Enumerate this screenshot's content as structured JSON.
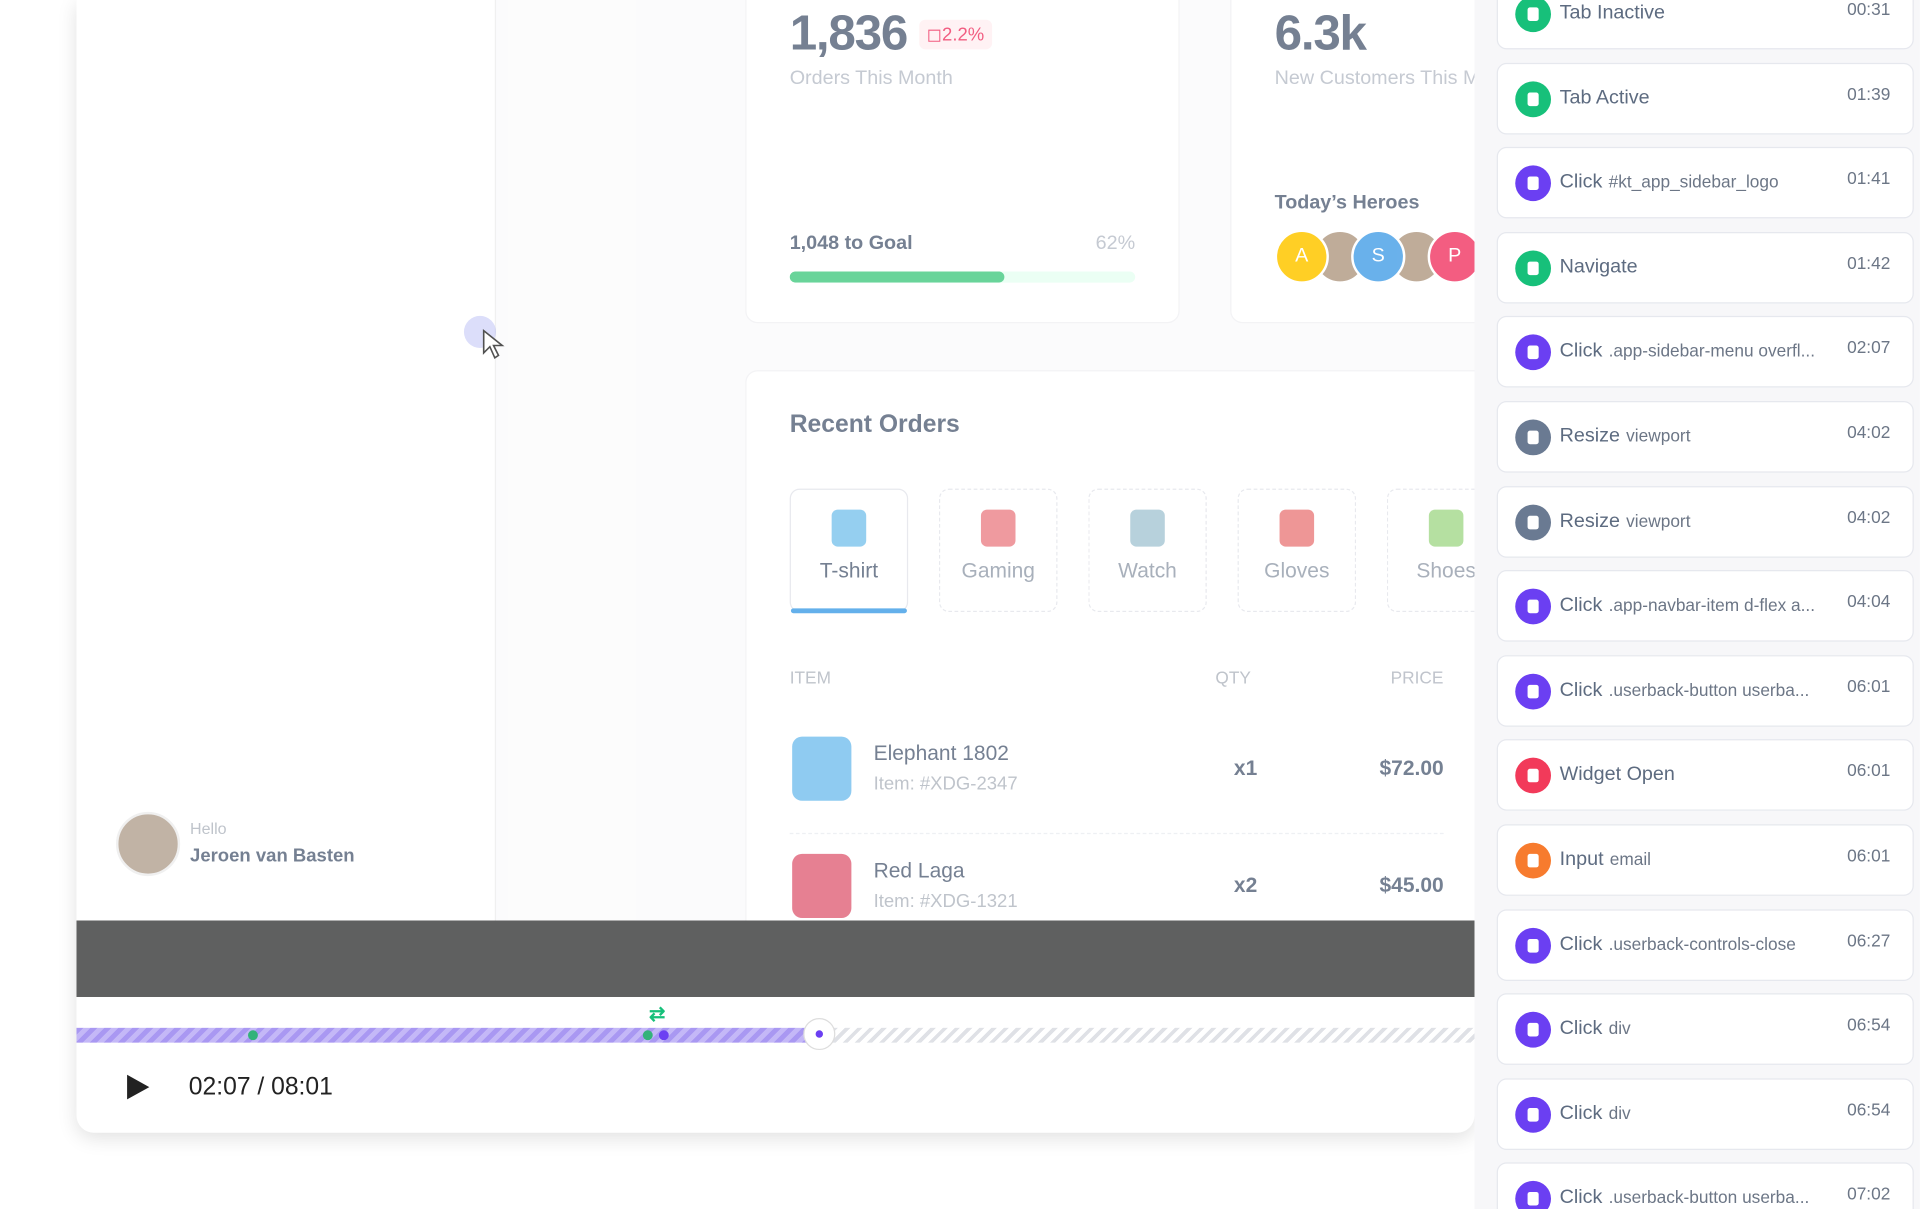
{
  "stats": {
    "orders": {
      "value": "1,836",
      "change": "2.2%",
      "label": "Orders This Month",
      "goal": "1,048 to Goal",
      "goal_percent": {
        "value": 62,
        "label": "62%"
      }
    },
    "customers": {
      "value": "6.3k",
      "label": "New Customers This Month",
      "heroes_title": "Today’s Heroes",
      "heroes": [
        "A",
        "S",
        "P"
      ]
    }
  },
  "recent_orders": {
    "title": "Recent Orders",
    "tabs": [
      "T-shirt",
      "Gaming",
      "Watch",
      "Gloves",
      "Shoes"
    ],
    "columns": [
      "ITEM",
      "QTY",
      "PRICE"
    ],
    "rows": [
      {
        "name": "Elephant 1802",
        "item": "Item: #XDG-2347",
        "qty": "x1",
        "price": "$72.00"
      },
      {
        "name": "Red Laga",
        "item": "Item: #XDG-1321",
        "qty": "x2",
        "price": "$45.00"
      }
    ]
  },
  "user": {
    "greeting": "Hello",
    "name": "Jeroen van Basten"
  },
  "player": {
    "time": "02:07 / 08:01"
  },
  "events": [
    {
      "action": "Tab Inactive",
      "target": "",
      "time": "00:31",
      "color": "#17c07a"
    },
    {
      "action": "Tab Active",
      "target": "",
      "time": "01:39",
      "color": "#17c07a"
    },
    {
      "action": "Click",
      "target": "#kt_app_sidebar_logo",
      "time": "01:41",
      "color": "#6b3ff2"
    },
    {
      "action": "Navigate",
      "target": "",
      "time": "01:42",
      "color": "#17c07a"
    },
    {
      "action": "Click",
      "target": ".app-sidebar-menu overfl...",
      "time": "02:07",
      "color": "#6b3ff2"
    },
    {
      "action": "Resize",
      "target": "viewport",
      "time": "04:02",
      "color": "#6a7a92"
    },
    {
      "action": "Resize",
      "target": "viewport",
      "time": "04:02",
      "color": "#6a7a92"
    },
    {
      "action": "Click",
      "target": ".app-navbar-item d-flex a...",
      "time": "04:04",
      "color": "#6b3ff2"
    },
    {
      "action": "Click",
      "target": ".userback-button userba...",
      "time": "06:01",
      "color": "#6b3ff2"
    },
    {
      "action": "Widget Open",
      "target": "",
      "time": "06:01",
      "color": "#f23a5a"
    },
    {
      "action": "Input",
      "target": "email",
      "time": "06:01",
      "color": "#f77b2e"
    },
    {
      "action": "Click",
      "target": ".userback-controls-close",
      "time": "06:27",
      "color": "#6b3ff2"
    },
    {
      "action": "Click",
      "target": "div",
      "time": "06:54",
      "color": "#6b3ff2"
    },
    {
      "action": "Click",
      "target": "div",
      "time": "06:54",
      "color": "#6b3ff2"
    },
    {
      "action": "Click",
      "target": ".userback-button userba...",
      "time": "07:02",
      "color": "#6b3ff2"
    }
  ]
}
